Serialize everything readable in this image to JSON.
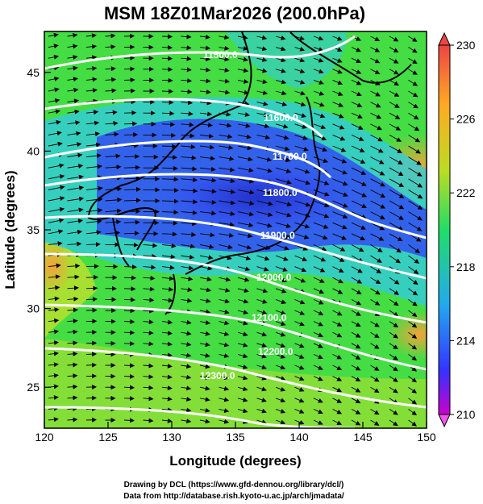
{
  "title": "MSM 18Z01Mar2026 (200.0hPa)",
  "axes": {
    "xlabel": "Longitude (degrees)",
    "ylabel": "Latitude  (degrees)",
    "x_ticks": [
      "120",
      "125",
      "130",
      "135",
      "140",
      "145",
      "150"
    ],
    "y_ticks": [
      "25",
      "30",
      "35",
      "40",
      "45"
    ],
    "xlim": [
      120,
      150
    ],
    "ylim": [
      22.4,
      47.6
    ]
  },
  "colorbar": {
    "ticks": [
      "230",
      "226",
      "222",
      "218",
      "214",
      "210"
    ],
    "range": [
      210,
      230
    ],
    "colors": [
      "#cc00cc",
      "#3333ff",
      "#22aaee",
      "#22dd66",
      "#bbdd22",
      "#ffaa22",
      "#ee4444"
    ]
  },
  "contours": {
    "labels": [
      "11500.0",
      "11600.0",
      "11700.0",
      "11800.0",
      "11900.0",
      "12000.0",
      "12100.0",
      "12200.0",
      "12300.0"
    ]
  },
  "credits": {
    "line1": "Drawing by DCL (https://www.gfd-dennou.org/library/dcl/)",
    "line2": "Data from http://database.rish.kyoto-u.ac.jp/arch/jmadata/"
  }
}
